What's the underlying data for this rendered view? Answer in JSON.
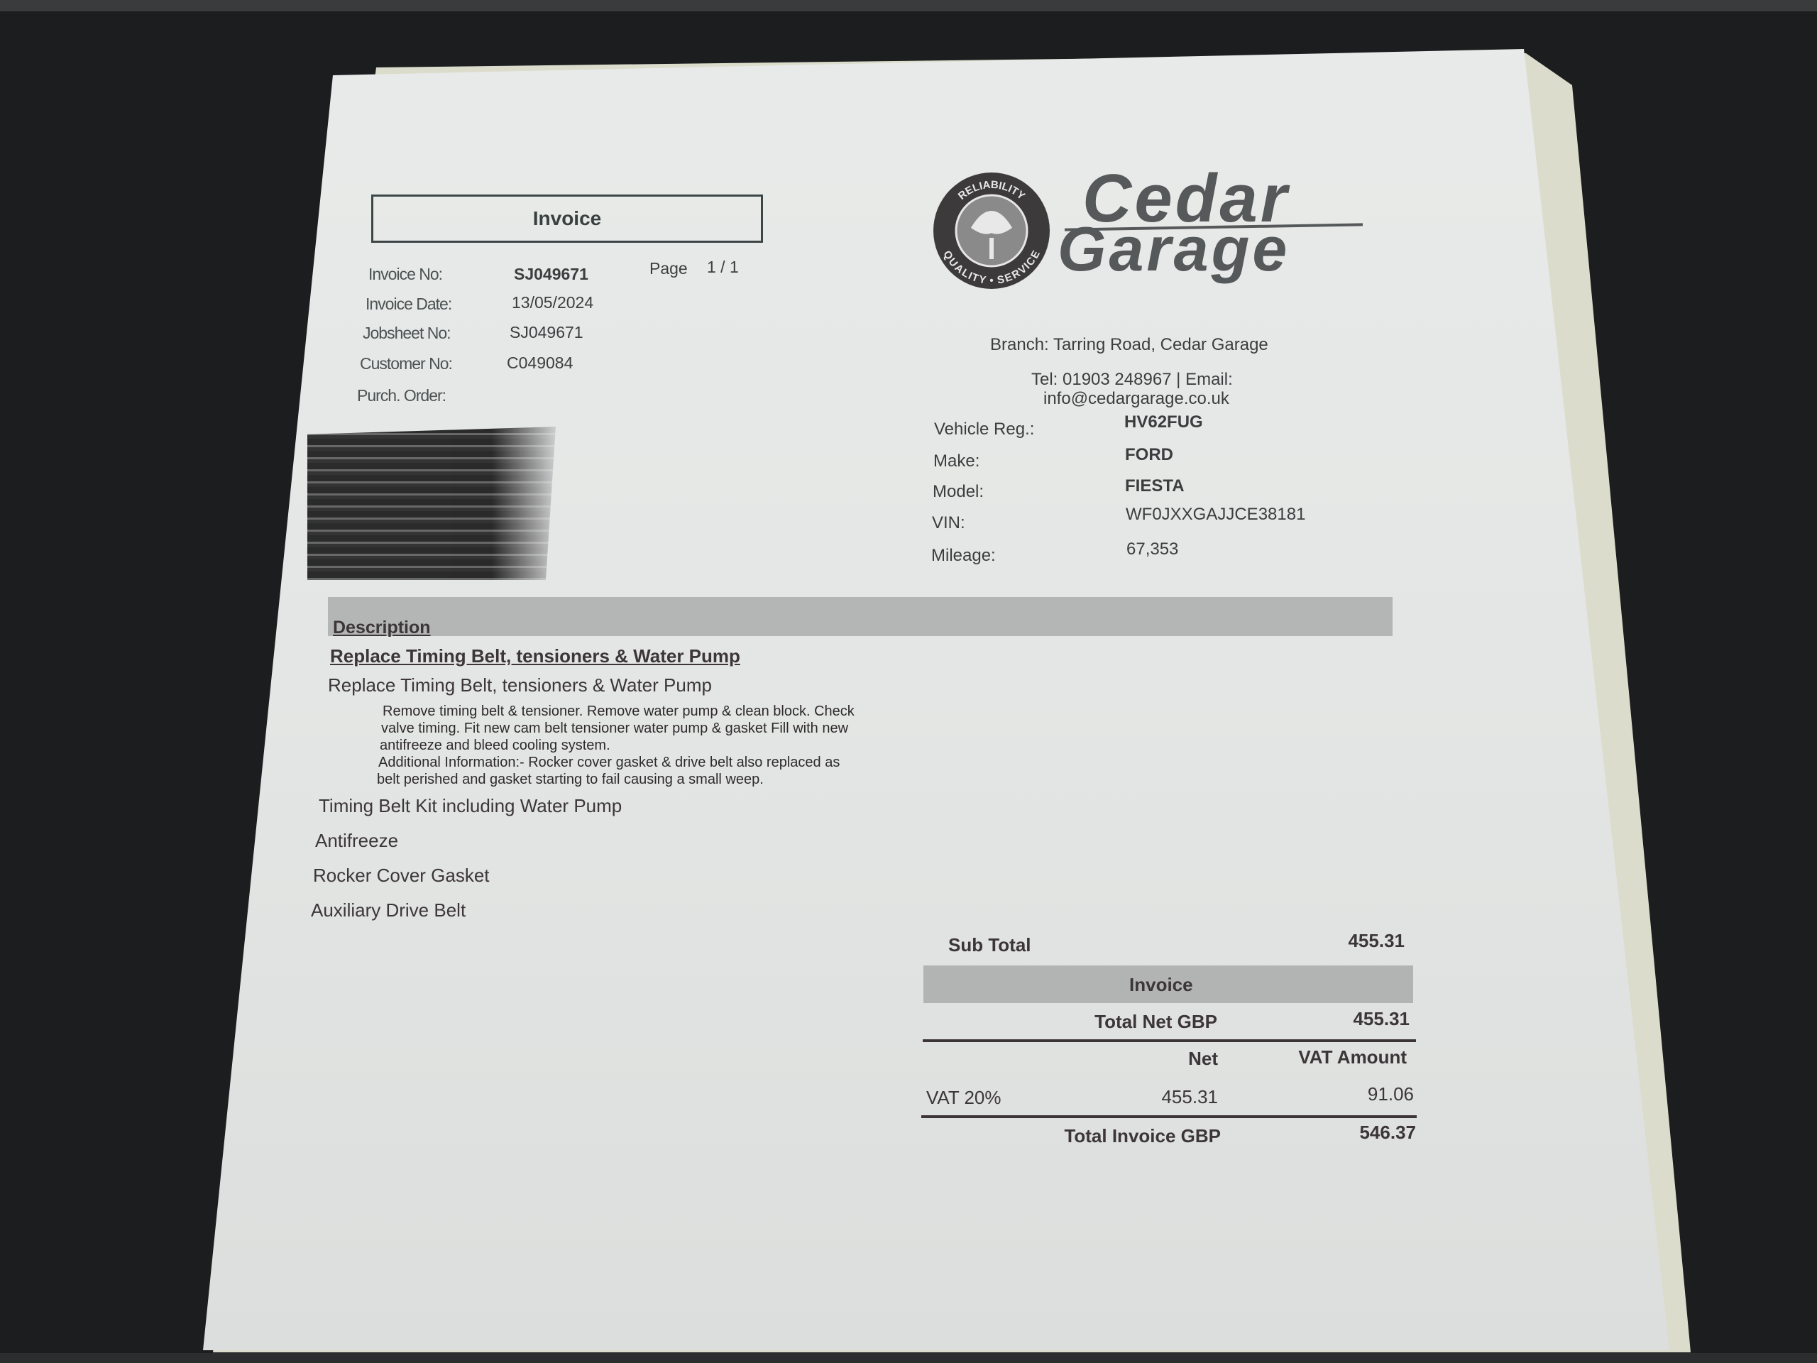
{
  "invoice_header": {
    "title": "Invoice",
    "page_label": "Page",
    "page_value": "1 / 1",
    "fields": [
      {
        "label": "Invoice No:",
        "value": "SJ049671"
      },
      {
        "label": "Invoice Date:",
        "value": "13/05/2024"
      },
      {
        "label": "Jobsheet No:",
        "value": "SJ049671"
      },
      {
        "label": "Customer No:",
        "value": "C049084"
      },
      {
        "label": "Purch. Order:",
        "value": ""
      }
    ]
  },
  "logo": {
    "ring_top": "RELIABILITY",
    "ring_bottom": "QUALITY • SERVICE",
    "word1": "Cedar",
    "word2": "Garage"
  },
  "branch": {
    "line1": "Branch: Tarring Road, Cedar Garage",
    "line2": "Tel: 01903 248967 | Email:",
    "line3": "info@cedargarage.co.uk"
  },
  "vehicle": [
    {
      "label": "Vehicle Reg.:",
      "value": "HV62FUG"
    },
    {
      "label": "Make:",
      "value": "FORD"
    },
    {
      "label": "Model:",
      "value": "FIESTA"
    },
    {
      "label": "VIN:",
      "value": "WF0JXXGAJJCE38181"
    },
    {
      "label": "Mileage:",
      "value": "67,353"
    }
  ],
  "description": {
    "header": "Description",
    "job_title": "Replace Timing Belt, tensioners & Water Pump",
    "job_line": "Replace Timing Belt, tensioners & Water Pump",
    "notes": [
      "Remove timing belt & tensioner. Remove water pump & clean block. Check",
      "valve timing. Fit new cam belt tensioner water pump & gasket Fill with new",
      "antifreeze and bleed cooling system.",
      "Additional Information:- Rocker cover gasket & drive belt also replaced as",
      "belt perished and gasket starting to fail causing a small weep."
    ],
    "parts": [
      "Timing Belt Kit including Water Pump",
      "Antifreeze",
      "Rocker Cover Gasket",
      "Auxiliary Drive Belt"
    ]
  },
  "totals": {
    "sub_total_label": "Sub Total",
    "sub_total": "455.31",
    "section_title": "Invoice",
    "total_net_label": "Total Net GBP",
    "total_net": "455.31",
    "net_header": "Net",
    "vat_header": "VAT Amount",
    "vat_rate_label": "VAT 20%",
    "vat_net": "455.31",
    "vat_amount": "91.06",
    "total_invoice_label": "Total Invoice GBP",
    "total_invoice": "546.37"
  }
}
